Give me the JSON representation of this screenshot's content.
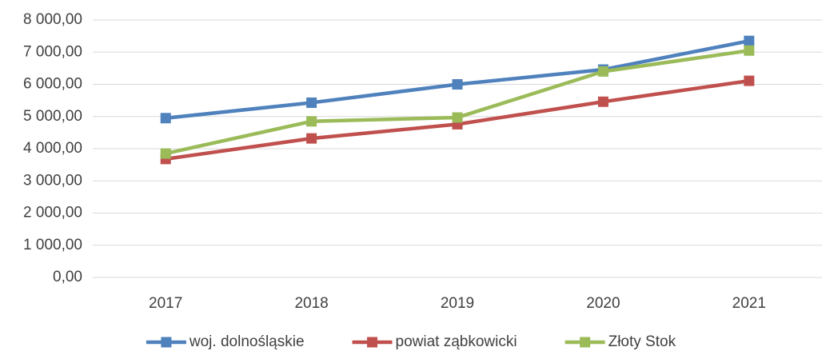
{
  "chart_data": {
    "type": "line",
    "categories": [
      "2017",
      "2018",
      "2019",
      "2020",
      "2021"
    ],
    "series": [
      {
        "name": "woj. dolnośląskie",
        "color": "#4f81bd",
        "values": [
          4950,
          5430,
          6000,
          6460,
          7350
        ]
      },
      {
        "name": "powiat ząbkowicki",
        "color": "#c0504d",
        "values": [
          3680,
          4320,
          4760,
          5460,
          6110
        ]
      },
      {
        "name": "Złoty Stok",
        "color": "#9bbb59",
        "values": [
          3850,
          4850,
          4970,
          6400,
          7050
        ]
      }
    ],
    "ylim": [
      0,
      8000
    ],
    "yticks": [
      {
        "value": 0,
        "label": "0,00"
      },
      {
        "value": 1000,
        "label": "1 000,00"
      },
      {
        "value": 2000,
        "label": "2 000,00"
      },
      {
        "value": 3000,
        "label": "3 000,00"
      },
      {
        "value": 4000,
        "label": "4 000,00"
      },
      {
        "value": 5000,
        "label": "5 000,00"
      },
      {
        "value": 6000,
        "label": "6 000,00"
      },
      {
        "value": 7000,
        "label": "7 000,00"
      },
      {
        "value": 8000,
        "label": "8 000,00"
      }
    ],
    "grid": true,
    "legend": "bottom"
  }
}
